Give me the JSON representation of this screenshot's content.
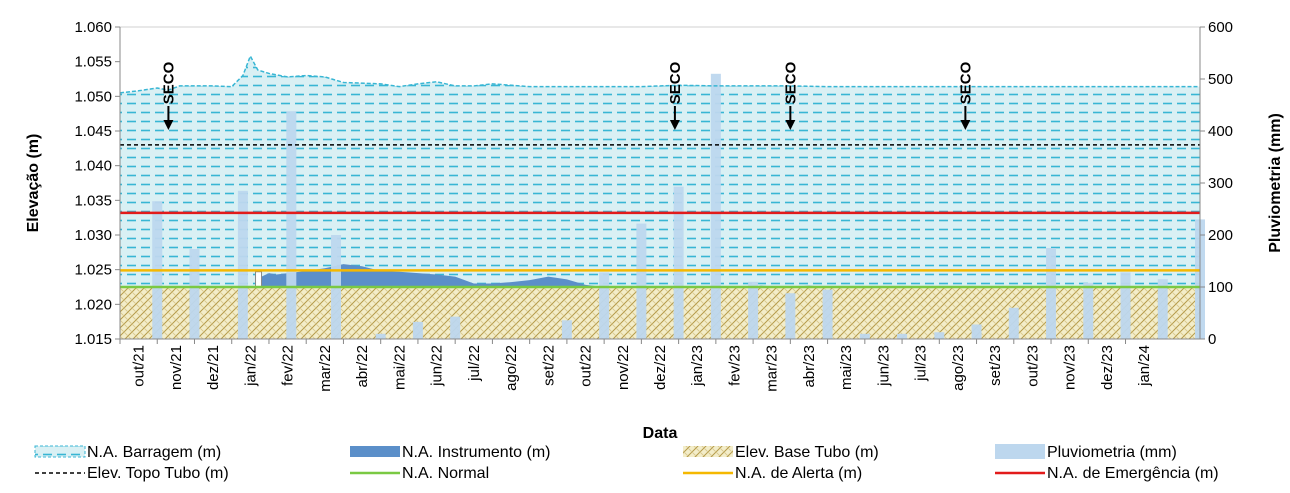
{
  "chart_data": {
    "type": "line",
    "xlabel": "Data",
    "ylabel_left": "Elevação (m)",
    "ylabel_right": "Pluviometria (mm)",
    "ylim_left": [
      1.015,
      1.06
    ],
    "ylim_right": [
      0,
      600
    ],
    "yticks_left": [
      "1.015",
      "1.020",
      "1.025",
      "1.030",
      "1.035",
      "1.040",
      "1.045",
      "1.050",
      "1.055",
      "1.060"
    ],
    "yticks_right": [
      "0",
      "100",
      "200",
      "300",
      "400",
      "500",
      "600"
    ],
    "xtick_labels": [
      "out/21",
      "nov/21",
      "dez/21",
      "jan/22",
      "fev/22",
      "mar/22",
      "abr/22",
      "mai/22",
      "jun/22",
      "jul/22",
      "ago/22",
      "set/22",
      "out/22",
      "nov/22",
      "dez/22",
      "jan/23",
      "fev/23",
      "mar/23",
      "abr/23",
      "mai/23",
      "jun/23",
      "jul/23",
      "ago/23",
      "set/23",
      "out/23",
      "nov/23",
      "dez/23",
      "jan/24"
    ],
    "x_range_months": [
      0,
      29
    ],
    "grid": false,
    "legend_position": "bottom",
    "series": {
      "na_barragem": {
        "name": "N.A. Barragem (m)",
        "color": "#38b6d4",
        "x": [
          0,
          0.5,
          1,
          1.3,
          1.6,
          2.5,
          3,
          3.3,
          3.5,
          3.7,
          4,
          4.5,
          5,
          5.5,
          6,
          7,
          7.5,
          8,
          8.5,
          9,
          9.5,
          10,
          11,
          12,
          13,
          14,
          15,
          16,
          17,
          18,
          19,
          20,
          21,
          22,
          23,
          24,
          25,
          26,
          27,
          28,
          29
        ],
        "values": [
          1.0505,
          1.0508,
          1.0512,
          1.0509,
          1.0515,
          1.0515,
          1.0514,
          1.053,
          1.0558,
          1.0538,
          1.0533,
          1.0528,
          1.053,
          1.0528,
          1.052,
          1.0518,
          1.0514,
          1.0518,
          1.0521,
          1.0515,
          1.0515,
          1.0518,
          1.0514,
          1.0514,
          1.0514,
          1.0514,
          1.0516,
          1.0515,
          1.0515,
          1.0515,
          1.0514,
          1.0514,
          1.0514,
          1.0514,
          1.0514,
          1.0514,
          1.0514,
          1.0514,
          1.0514,
          1.0514,
          1.0514
        ]
      },
      "na_instrumento": {
        "name": "N.A. Instrumento (m)",
        "color": "#5b8fc9",
        "x": [
          3.8,
          4.0,
          4.2,
          5,
          5.5,
          6,
          6.5,
          7,
          7.5,
          8,
          8.5,
          9,
          9.5,
          10,
          10.5,
          11,
          11.5,
          12,
          12.5,
          13,
          13.5,
          14,
          15,
          16,
          17,
          17.2,
          17.5,
          18,
          18.5,
          19,
          19.5,
          20
        ],
        "values": [
          1.024,
          1.0245,
          1.0243,
          1.0248,
          1.0252,
          1.0258,
          1.0255,
          1.0248,
          1.0247,
          1.0245,
          1.0243,
          1.024,
          1.023,
          1.023,
          1.0232,
          1.0235,
          1.024,
          1.0236,
          1.0228,
          1.0225,
          1.0225,
          1.0225,
          1.0225,
          1.0225,
          1.0225,
          1.0227,
          1.0226,
          1.0225,
          1.0227,
          1.0225,
          1.0226,
          1.0225
        ]
      },
      "elev_base_tubo": {
        "name": "Elev. Base Tubo (m)",
        "color": "#c9b879",
        "value": 1.0225
      },
      "elev_topo_tubo": {
        "name": "Elev. Topo Tubo (m)",
        "color": "#000000",
        "value": 1.043
      },
      "na_normal": {
        "name": "N.A. Normal",
        "color": "#7ac943",
        "value": 1.0225
      },
      "na_alerta": {
        "name": "N.A. de Alerta (m)",
        "color": "#f5b800",
        "value": 1.0249
      },
      "na_emergencia": {
        "name": "N.A. de Emergência (m)",
        "color": "#e21b1b",
        "value": 1.0332
      },
      "pluviometria": {
        "name": "Pluviometria (mm)",
        "color": "#bdd7ee",
        "x": [
          1.0,
          2.0,
          3.3,
          4.6,
          5.8,
          7.0,
          8.0,
          9.0,
          12.0,
          13.0,
          14.0,
          15.0,
          16.0,
          17.0,
          18.0,
          19.0,
          20.0,
          21.0,
          22.0,
          23.0,
          24.0,
          25.0,
          26.0,
          27.0,
          28.0,
          29.0
        ],
        "values": [
          265,
          173,
          285,
          438,
          200,
          10,
          33,
          43,
          36,
          128,
          222,
          293,
          510,
          110,
          88,
          95,
          10,
          10,
          13,
          28,
          60,
          175,
          108,
          128,
          115,
          230
        ]
      }
    },
    "annotations": [
      {
        "text": "SECO",
        "x": 1.3
      },
      {
        "text": "SECO",
        "x": 14.9
      },
      {
        "text": "SECO",
        "x": 18.0
      },
      {
        "text": "SECO",
        "x": 22.7
      }
    ]
  }
}
